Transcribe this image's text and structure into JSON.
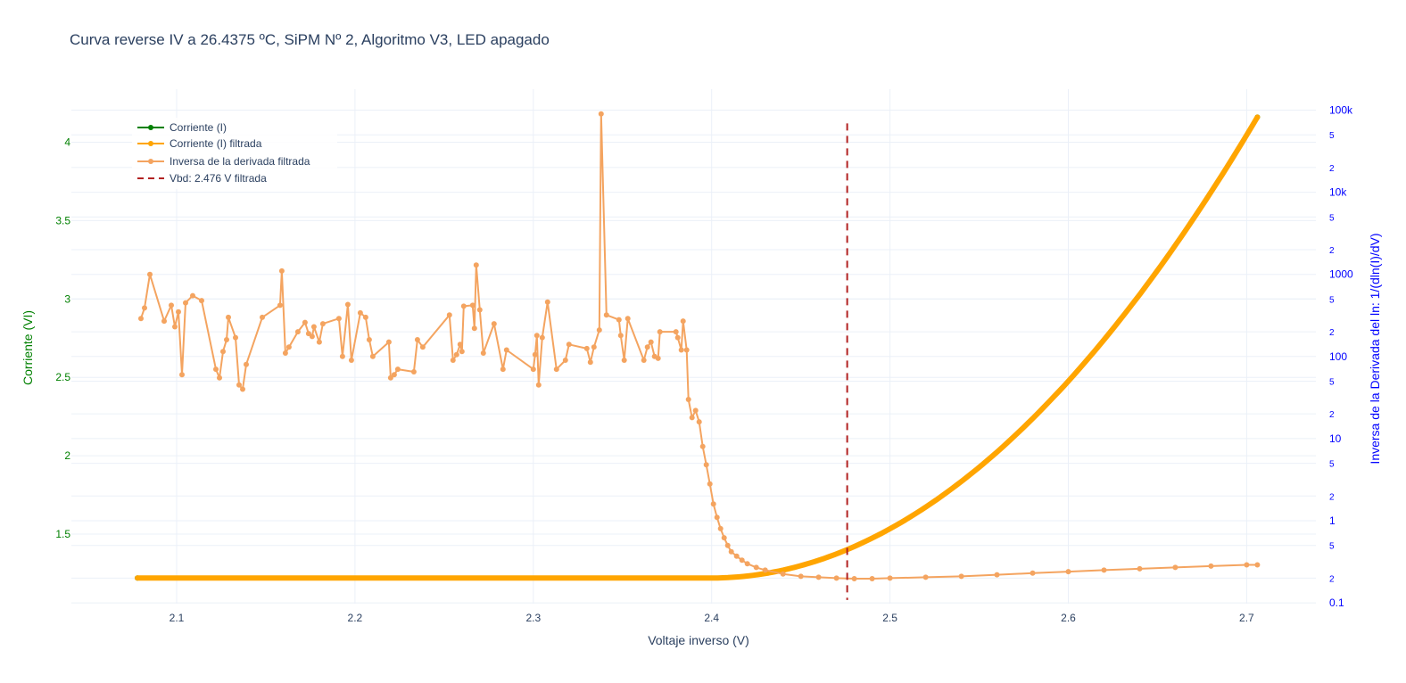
{
  "chart_data": {
    "type": "line",
    "title": "Curva reverse IV a 26.4375 ºC, SiPM Nº 2, Algoritmo V3, LED apagado",
    "xlabel": "Voltaje inverso (V)",
    "ylabel_left": "Corriente (VI)",
    "ylabel_right": "Inversa de la Derivada del ln: 1/(dln(I)/dV)",
    "xlim": [
      2.04,
      2.74
    ],
    "ylim_left": [
      1.06,
      4.28
    ],
    "ylim_right_log": [
      0.1,
      200000
    ],
    "right_axis_scale": "log",
    "grid": true,
    "legend_position": "top-left",
    "x_ticks": [
      "2.1",
      "2.2",
      "2.3",
      "2.4",
      "2.5",
      "2.6",
      "2.7"
    ],
    "y_left_ticks": [
      "1.5",
      "2",
      "2.5",
      "3",
      "3.5",
      "4"
    ],
    "y_right_major_ticks": [
      "0.1",
      "1",
      "10",
      "100",
      "1000",
      "10k",
      "100k"
    ],
    "y_right_minor_labels": [
      "2",
      "5"
    ],
    "colors": {
      "corriente": "#008000",
      "filtrada": "#ffa500",
      "inversa": "#f4a460",
      "vbd": "#b22222",
      "left_axis": "#008000",
      "right_axis": "#0000ff"
    },
    "series": [
      {
        "name": "Corriente (I)",
        "axis": "left",
        "model": "flat then rising curve",
        "x_range": [
          2.078,
          2.706
        ],
        "baseline": 1.22,
        "knee_x": 2.4,
        "end_value": 4.16
      },
      {
        "name": "Corriente (I) filtrada",
        "axis": "left",
        "model": "flat then rising curve",
        "x_range": [
          2.078,
          2.706
        ],
        "baseline": 1.22,
        "knee_x": 2.4,
        "end_value": 4.16
      },
      {
        "name": "Inversa de la derivada filtrada",
        "axis": "right",
        "points": [
          [
            2.08,
            290
          ],
          [
            2.082,
            390
          ],
          [
            2.085,
            1000
          ],
          [
            2.093,
            270
          ],
          [
            2.097,
            420
          ],
          [
            2.099,
            230
          ],
          [
            2.101,
            350
          ],
          [
            2.103,
            60
          ],
          [
            2.105,
            450
          ],
          [
            2.109,
            550
          ],
          [
            2.114,
            480
          ],
          [
            2.122,
            70
          ],
          [
            2.124,
            55
          ],
          [
            2.126,
            115
          ],
          [
            2.128,
            160
          ],
          [
            2.129,
            300
          ],
          [
            2.133,
            170
          ],
          [
            2.135,
            45
          ],
          [
            2.137,
            40
          ],
          [
            2.139,
            80
          ],
          [
            2.148,
            300
          ],
          [
            2.158,
            420
          ],
          [
            2.159,
            1100
          ],
          [
            2.161,
            110
          ],
          [
            2.163,
            130
          ],
          [
            2.168,
            200
          ],
          [
            2.172,
            260
          ],
          [
            2.174,
            190
          ],
          [
            2.176,
            175
          ],
          [
            2.177,
            230
          ],
          [
            2.18,
            150
          ],
          [
            2.182,
            250
          ],
          [
            2.191,
            290
          ],
          [
            2.193,
            100
          ],
          [
            2.196,
            430
          ],
          [
            2.198,
            90
          ],
          [
            2.203,
            340
          ],
          [
            2.206,
            300
          ],
          [
            2.208,
            160
          ],
          [
            2.21,
            100
          ],
          [
            2.219,
            150
          ],
          [
            2.22,
            55
          ],
          [
            2.222,
            60
          ],
          [
            2.224,
            70
          ],
          [
            2.233,
            65
          ],
          [
            2.235,
            160
          ],
          [
            2.238,
            130
          ],
          [
            2.253,
            320
          ],
          [
            2.255,
            90
          ],
          [
            2.257,
            105
          ],
          [
            2.259,
            140
          ],
          [
            2.26,
            115
          ],
          [
            2.261,
            410
          ],
          [
            2.266,
            420
          ],
          [
            2.267,
            220
          ],
          [
            2.268,
            1300
          ],
          [
            2.27,
            370
          ],
          [
            2.272,
            110
          ],
          [
            2.278,
            250
          ],
          [
            2.283,
            70
          ],
          [
            2.285,
            120
          ],
          [
            2.3,
            70
          ],
          [
            2.301,
            105
          ],
          [
            2.302,
            180
          ],
          [
            2.303,
            45
          ],
          [
            2.305,
            170
          ],
          [
            2.308,
            460
          ],
          [
            2.313,
            70
          ],
          [
            2.318,
            90
          ],
          [
            2.32,
            140
          ],
          [
            2.33,
            125
          ],
          [
            2.332,
            85
          ],
          [
            2.334,
            130
          ],
          [
            2.337,
            210
          ],
          [
            2.338,
            90000
          ],
          [
            2.341,
            320
          ],
          [
            2.348,
            280
          ],
          [
            2.349,
            180
          ],
          [
            2.351,
            90
          ],
          [
            2.353,
            290
          ],
          [
            2.362,
            90
          ],
          [
            2.364,
            130
          ],
          [
            2.366,
            150
          ],
          [
            2.368,
            100
          ],
          [
            2.37,
            95
          ],
          [
            2.371,
            200
          ],
          [
            2.38,
            200
          ],
          [
            2.381,
            170
          ],
          [
            2.383,
            120
          ],
          [
            2.384,
            270
          ],
          [
            2.386,
            120
          ],
          [
            2.387,
            30
          ],
          [
            2.389,
            18
          ],
          [
            2.391,
            22
          ],
          [
            2.393,
            16
          ],
          [
            2.395,
            8
          ],
          [
            2.397,
            4.8
          ],
          [
            2.399,
            2.8
          ],
          [
            2.401,
            1.6
          ],
          [
            2.403,
            1.1
          ],
          [
            2.405,
            0.8
          ],
          [
            2.407,
            0.62
          ],
          [
            2.409,
            0.5
          ],
          [
            2.411,
            0.42
          ],
          [
            2.414,
            0.37
          ],
          [
            2.417,
            0.33
          ],
          [
            2.42,
            0.3
          ],
          [
            2.425,
            0.27
          ],
          [
            2.43,
            0.25
          ],
          [
            2.44,
            0.225
          ],
          [
            2.45,
            0.21
          ],
          [
            2.46,
            0.205
          ],
          [
            2.47,
            0.2
          ],
          [
            2.48,
            0.197
          ],
          [
            2.49,
            0.197
          ],
          [
            2.5,
            0.2
          ],
          [
            2.52,
            0.205
          ],
          [
            2.54,
            0.21
          ],
          [
            2.56,
            0.22
          ],
          [
            2.58,
            0.23
          ],
          [
            2.6,
            0.24
          ],
          [
            2.62,
            0.25
          ],
          [
            2.64,
            0.26
          ],
          [
            2.66,
            0.27
          ],
          [
            2.68,
            0.28
          ],
          [
            2.7,
            0.29
          ],
          [
            2.706,
            0.29
          ]
        ]
      },
      {
        "name": "Vbd: 2.476 V filtrada",
        "axis": "left",
        "style": "dashed",
        "x": 2.476,
        "y_range": [
          1.08,
          4.12
        ]
      }
    ]
  }
}
